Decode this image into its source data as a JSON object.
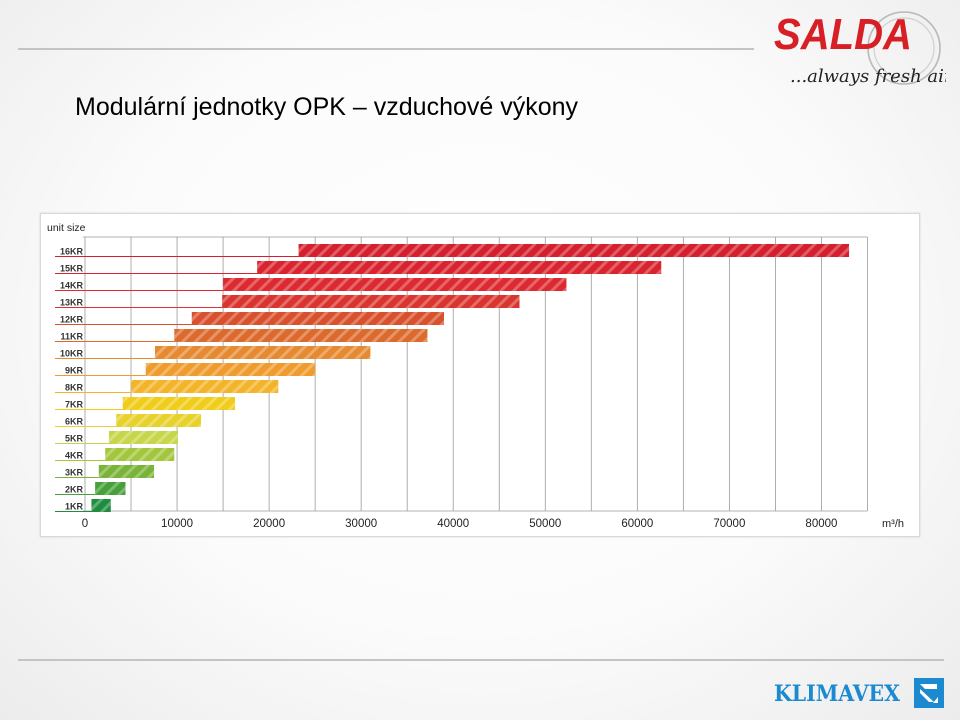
{
  "title": "Modulární jednotky OPK – vzduchové výkony",
  "logos": {
    "salda_name": "SALDA",
    "salda_slogan": "...always fresh air!",
    "klimavex_name": "KLIMAVEX",
    "salda_color": "#d71f26",
    "klimavex_color": "#1c8ad0"
  },
  "chart_data": {
    "type": "bar",
    "orientation": "horizontal-range",
    "title": "",
    "ylabel": "unit size",
    "xlabel": "m³/h",
    "xlim": [
      0,
      85000
    ],
    "x_ticks": [
      "0",
      "10000",
      "20000",
      "30000",
      "40000",
      "50000",
      "60000",
      "70000",
      "80000"
    ],
    "grid": true,
    "categories": [
      "16KR",
      "15KR",
      "14KR",
      "13KR",
      "12KR",
      "11KR",
      "10KR",
      "9KR",
      "8KR",
      "7KR",
      "6KR",
      "5KR",
      "4KR",
      "3KR",
      "2KR",
      "1KR"
    ],
    "ranges": [
      [
        23200,
        83000
      ],
      [
        18700,
        62600
      ],
      [
        15000,
        52300
      ],
      [
        14900,
        47200
      ],
      [
        11600,
        39000
      ],
      [
        9700,
        37200
      ],
      [
        7600,
        31000
      ],
      [
        6600,
        25000
      ],
      [
        5000,
        21000
      ],
      [
        4100,
        16300
      ],
      [
        3400,
        12600
      ],
      [
        2600,
        10100
      ],
      [
        2200,
        9700
      ],
      [
        1500,
        7500
      ],
      [
        1100,
        4400
      ],
      [
        700,
        2800
      ]
    ],
    "colors": [
      "#d41f2c",
      "#d9242f",
      "#dd2a30",
      "#d9342d",
      "#d8502c",
      "#dd6a2d",
      "#e58a31",
      "#ef9b2e",
      "#f4b42a",
      "#f0cd1a",
      "#e7d12b",
      "#c6d64a",
      "#a3c63e",
      "#7ab33a",
      "#47a03a",
      "#1e8e3e"
    ]
  }
}
